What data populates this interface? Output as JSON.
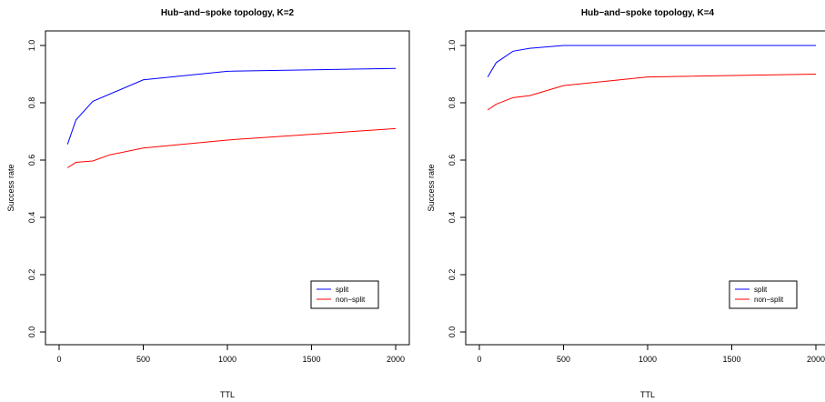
{
  "chart_data": [
    {
      "type": "line",
      "title": "Hub−and−spoke topology, K=2",
      "xlabel": "TTL",
      "ylabel": "Success rate",
      "xlim": [
        0,
        2000
      ],
      "ylim": [
        0,
        1
      ],
      "xticks": [
        "0",
        "500",
        "1000",
        "1500",
        "2000"
      ],
      "yticks": [
        "0.0",
        "0.2",
        "0.4",
        "0.6",
        "0.8",
        "1.0"
      ],
      "grid": false,
      "legend_position": "bottom-right",
      "series": [
        {
          "name": "split",
          "color": "#0000ff",
          "x": [
            50,
            100,
            200,
            500,
            1000,
            2000
          ],
          "y": [
            0.655,
            0.74,
            0.805,
            0.88,
            0.91,
            0.92
          ]
        },
        {
          "name": "non−split",
          "color": "#ff0000",
          "x": [
            50,
            100,
            200,
            300,
            500,
            1000,
            2000
          ],
          "y": [
            0.573,
            0.592,
            0.597,
            0.618,
            0.642,
            0.67,
            0.71
          ]
        }
      ]
    },
    {
      "type": "line",
      "title": "Hub−and−spoke topology, K=4",
      "xlabel": "TTL",
      "ylabel": "Success rate",
      "xlim": [
        0,
        2000
      ],
      "ylim": [
        0,
        1
      ],
      "xticks": [
        "0",
        "500",
        "1000",
        "1500",
        "2000"
      ],
      "yticks": [
        "0.0",
        "0.2",
        "0.4",
        "0.6",
        "0.8",
        "1.0"
      ],
      "grid": false,
      "legend_position": "bottom-right",
      "series": [
        {
          "name": "split",
          "color": "#0000ff",
          "x": [
            50,
            100,
            200,
            300,
            500,
            1000,
            2000
          ],
          "y": [
            0.89,
            0.94,
            0.98,
            0.99,
            1.0,
            1.0,
            1.0
          ]
        },
        {
          "name": "non−split",
          "color": "#ff0000",
          "x": [
            50,
            100,
            200,
            300,
            500,
            1000,
            2000
          ],
          "y": [
            0.775,
            0.795,
            0.818,
            0.825,
            0.86,
            0.89,
            0.9
          ]
        }
      ]
    }
  ]
}
